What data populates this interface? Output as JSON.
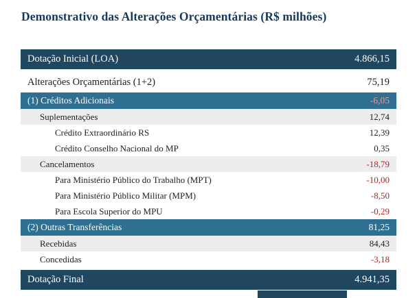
{
  "title": "Demonstrativo das Alterações Orçamentárias (R$ milhões)",
  "colors": {
    "title_text": "#15385f",
    "dark_row_bg": "#20475f",
    "blue_row_bg": "#2f6f91",
    "gray_row_bg": "#ededed",
    "white_row_bg": "#ffffff",
    "negative_value": "#c02020",
    "negative_value_on_blue": "#f19a93"
  },
  "chart_data": {
    "type": "table",
    "title": "Demonstrativo das Alterações Orçamentárias (R$ milhões)",
    "rows": [
      {
        "label": "Dotação Inicial (LOA)",
        "value": "4.866,15",
        "indent": 0,
        "style": "dark",
        "negative": false
      },
      {
        "label": "Alterações Orçamentárias (1+2)",
        "value": "75,19",
        "indent": 0,
        "style": "plain",
        "negative": false
      },
      {
        "label": "(1) Créditos Adicionais",
        "value": "-6,05",
        "indent": 0,
        "style": "blue",
        "negative": true
      },
      {
        "label": "Suplementações",
        "value": "12,74",
        "indent": 1,
        "style": "gray",
        "negative": false
      },
      {
        "label": "Crédito Extraordinário RS",
        "value": "12,39",
        "indent": 2,
        "style": "white",
        "negative": false
      },
      {
        "label": "Crédito Conselho Nacional do MP",
        "value": "0,35",
        "indent": 2,
        "style": "white",
        "negative": false
      },
      {
        "label": "Cancelamentos",
        "value": "-18,79",
        "indent": 1,
        "style": "gray",
        "negative": true
      },
      {
        "label": "Para Ministério Público do Trabalho (MPT)",
        "value": "-10,00",
        "indent": 2,
        "style": "white",
        "negative": true
      },
      {
        "label": "Para Ministério Público Militar (MPM)",
        "value": "-8,50",
        "indent": 2,
        "style": "white",
        "negative": true
      },
      {
        "label": "Para Escola Superior do MPU",
        "value": "-0,29",
        "indent": 2,
        "style": "white",
        "negative": true
      },
      {
        "label": "(2) Outras Transferências",
        "value": "81,25",
        "indent": 0,
        "style": "blue",
        "negative": false
      },
      {
        "label": "Recebidas",
        "value": "84,43",
        "indent": 1,
        "style": "gray",
        "negative": false
      },
      {
        "label": "Concedidas",
        "value": "-3,18",
        "indent": 1,
        "style": "white",
        "negative": true
      },
      {
        "label": "Dotação Final",
        "value": "4.941,35",
        "indent": 0,
        "style": "dark",
        "negative": false
      }
    ]
  }
}
